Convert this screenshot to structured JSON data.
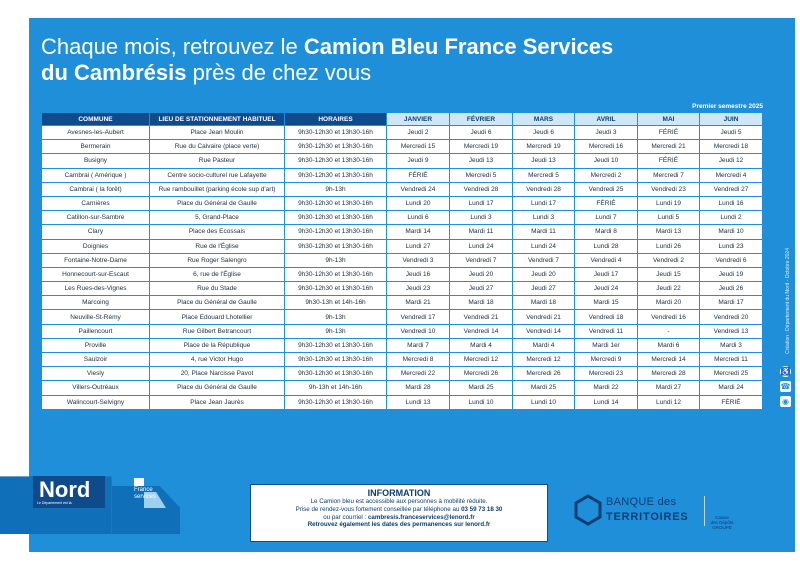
{
  "headline": {
    "line1_normal": "Chaque mois, retrouvez le ",
    "line1_bold": "Camion Bleu France Services",
    "line2_bold": "du Cambrésis",
    "line2_normal": " près de chez vous"
  },
  "semester": "Premier semestre 2025",
  "table": {
    "headers": [
      "COMMUNE",
      "LIEU DE STATIONNEMENT HABITUEL",
      "HORAIRES",
      "JANVIER",
      "FÉVRIER",
      "MARS",
      "AVRIL",
      "MAI",
      "JUIN"
    ],
    "rows": [
      [
        "Avesnes-les-Aubert",
        "Place Jean Moulin",
        "9h30-12h30 et 13h30-16h",
        "Jeudi 2",
        "Jeudi 6",
        "Jeudi 6",
        "Jeudi 3",
        "FÉRIÉ",
        "Jeudi 5"
      ],
      [
        "Bermerain",
        "Rue du Calvaire (place verte)",
        "9h30-12h30 et 13h30-16h",
        "Mercredi 15",
        "Mercredi 19",
        "Mercredi 19",
        "Mercredi 16",
        "Mercredi 21",
        "Mercredi 18"
      ],
      [
        "Busigny",
        "Rue Pasteur",
        "9h30-12h30 et 13h30-16h",
        "Jeudi 9",
        "Jeudi 13",
        "Jeudi 13",
        "Jeudi 10",
        "FÉRIÉ",
        "Jeudi 12"
      ],
      [
        "Cambrai ( Amérique )",
        "Centre socio-culturel rue Lafayette",
        "9h30-12h30 et 13h30-16h",
        "FÉRIÉ",
        "Mercredi 5",
        "Mercredi 5",
        "Mercredi 2",
        "Mercredi 7",
        "Mercredi 4"
      ],
      [
        "Cambrai ( la forêt)",
        "Rue rambouillet (parking école sup d'art)",
        "9h-13h",
        "Vendredi 24",
        "Vendredi 28",
        "Vendredi 28",
        "Vendredi 25",
        "Vendredi 23",
        "Vendredi 27"
      ],
      [
        "Carnières",
        "Place du Général de Gaulle",
        "9h30-12h30 et 13h30-16h",
        "Lundi 20",
        "Lundi 17",
        "Lundi 17",
        "FÉRIÉ",
        "Lundi 19",
        "Lundi 16"
      ],
      [
        "Catillon-sur-Sambre",
        "5, Grand-Place",
        "9h30-12h30 et 13h30-16h",
        "Lundi 6",
        "Lundi 3",
        "Lundi 3",
        "Lundi 7",
        "Lundi 5",
        "Lundi 2"
      ],
      [
        "Clary",
        "Place des Ecossais",
        "9h30-12h30 et 13h30-16h",
        "Mardi 14",
        "Mardi 11",
        "Mardi 11",
        "Mardi 8",
        "Mardi 13",
        "Mardi 10"
      ],
      [
        "Doignies",
        "Rue de l'Église",
        "9h30-12h30 et 13h30-16h",
        "Lundi 27",
        "Lundi 24",
        "Lundi 24",
        "Lundi 28",
        "Lundi 26",
        "Lundi 23"
      ],
      [
        "Fontaine-Notre-Dame",
        "Rue Roger Salengro",
        "9h-13h",
        "Vendredi 3",
        "Vendredi 7",
        "Vendredi 7",
        "Vendredi 4",
        "Vendredi 2",
        "Vendredi 6"
      ],
      [
        "Honnecourt-sur-Escaut",
        "6, rue de l'Église",
        "9h30-12h30 et 13h30-16h",
        "Jeudi 16",
        "Jeudi 20",
        "Jeudi 20",
        "Jeudi 17",
        "Jeudi 15",
        "Jeudi 19"
      ],
      [
        "Les Rues-des-Vignes",
        "Rue du Stade",
        "9h30-12h30 et 13h30-16h",
        "Jeudi 23",
        "Jeudi 27",
        "Jeudi 27",
        "Jeudi 24",
        "Jeudi 22",
        "Jeudi 26"
      ],
      [
        "Marcoing",
        "Place du Général de Gaulle",
        "9h30-13h et 14h-16h",
        "Mardi 21",
        "Mardi 18",
        "Mardi 18",
        "Mardi 15",
        "Mardi 20",
        "Mardi 17"
      ],
      [
        "Neuville-St-Rémy",
        "Place Edouard Lhotellier",
        "9h-13h",
        "Vendredi 17",
        "Vendredi 21",
        "Vendredi 21",
        "Vendredi 18",
        "Vendredi 16",
        "Vendredi 20"
      ],
      [
        "Paillencourt",
        "Rue Gilbert Betrancourt",
        "9h-13h",
        "Vendredi 10",
        "Vendredi 14",
        "Vendredi 14",
        "Vendredi 11",
        "-",
        "Vendredi 13"
      ],
      [
        "Proville",
        "Place de la République",
        "9h30-12h30 et 13h30-16h",
        "Mardi 7",
        "Mardi 4",
        "Mardi 4",
        "Mardi 1er",
        "Mardi 6",
        "Mardi 3"
      ],
      [
        "Saulzoir",
        "4, rue Victor Hugo",
        "9h30-12h30 et 13h30-16h",
        "Mercredi 8",
        "Mercredi 12",
        "Mercredi 12",
        "Mercredi 9",
        "Mercredi 14",
        "Mercredi 11"
      ],
      [
        "Viesly",
        "20, Place Narcisse Pavot",
        "9h30-12h30 et 13h30-16h",
        "Mercredi 22",
        "Mercredi 26",
        "Mercredi 26",
        "Mercredi 23",
        "Mercredi 28",
        "Mercredi 25"
      ],
      [
        "Villers-Outréaux",
        "Place du Général de Gaulle",
        "9h-13h et 14h-16h",
        "Mardi 28",
        "Mardi 25",
        "Mardi 25",
        "Mardi 22",
        "Mardi 27",
        "Mardi 24"
      ],
      [
        "Walincourt-Selvigny",
        "Place Jean Jaurès",
        "9h30-12h30 et 13h30-16h",
        "Lundi 13",
        "Lundi 10",
        "Lundi 10",
        "Lundi 14",
        "Lundi 12",
        "FÉRIÉ"
      ]
    ]
  },
  "side_credit": "Création : Département du Nord - Octobre 2024",
  "info": {
    "title": "INFORMATION",
    "line1": "Le Camion bleu est accessible aux personnes à mobilité réduite.",
    "line2_prefix": "Prise de rendez-vous fortement conseillée par téléphone au ",
    "phone": "03 59 73 18 30",
    "line3_prefix": "ou par courriel : ",
    "email": "cambresis.franceservices@lenord.fr",
    "line4": "Retrouvez également les dates des permanences sur lenord.fr"
  },
  "logos": {
    "nord_word": "Nord",
    "nord_tagline": "Le Département est là.",
    "france_services_line1": "France",
    "france_services_line2": "services",
    "bdt_line1": "BANQUE des",
    "bdt_line2": "TERRITOIRES",
    "cdc_line1": "Caisse",
    "cdc_line2": "des Dépôts",
    "cdc_line3": "GROUPE"
  },
  "colors": {
    "poster_blue": "#1e8fd8",
    "dark_blue": "#0f4a8a",
    "month_header": "#cfe6f7"
  }
}
